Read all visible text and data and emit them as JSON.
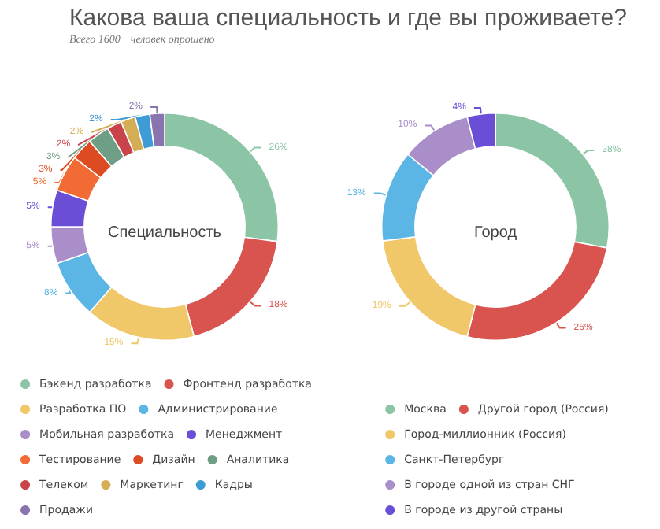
{
  "chart_data": [
    {
      "type": "donut",
      "title": "Какова ваша специальность и где вы проживаете?",
      "subtitle": "Всего 1600+  человек опрошено",
      "annotations": [
        "Специальность"
      ],
      "legend": "bottom",
      "categories": [
        "Бэкенд разработка",
        "Фронтенд разработка",
        "Разработка ПО",
        "Администрирование",
        "Мобильная разработка",
        "Менеджмент",
        "Тестирование",
        "Дизайн",
        "Аналитика",
        "Телеком",
        "Маркетинг",
        "Кадры",
        "Продажи"
      ],
      "values": [
        26,
        18,
        15,
        8,
        5,
        5,
        5,
        3,
        3,
        2,
        2,
        2,
        2
      ],
      "value_labels": [
        "26%",
        "18%",
        "15%",
        "8%",
        "5%",
        "5%",
        "5%",
        "3%",
        "3%",
        "2%",
        "2%",
        "2%",
        "2%"
      ],
      "colors": [
        "#8cc5a5",
        "#d9534f",
        "#f0c869",
        "#5bb5e5",
        "#a98ec9",
        "#6a4fd6",
        "#f26b35",
        "#dd4b22",
        "#6e9e86",
        "#c9444a",
        "#d4ad55",
        "#3d9bd6",
        "#8a74b0"
      ]
    },
    {
      "type": "donut",
      "annotations": [
        "Город"
      ],
      "legend": "bottom",
      "categories": [
        "Москва",
        "Другой город (Россия)",
        "Город-миллионник (Россия)",
        "Санкт-Петербург",
        "В городе одной из стран СНГ",
        "В городе из другой страны"
      ],
      "values": [
        28,
        26,
        19,
        13,
        10,
        4
      ],
      "value_labels": [
        "28%",
        "26%",
        "19%",
        "13%",
        "10%",
        "4%"
      ],
      "colors": [
        "#8cc5a5",
        "#d9534f",
        "#f0c869",
        "#5bb5e5",
        "#a98ec9",
        "#6a4fd6"
      ]
    }
  ]
}
